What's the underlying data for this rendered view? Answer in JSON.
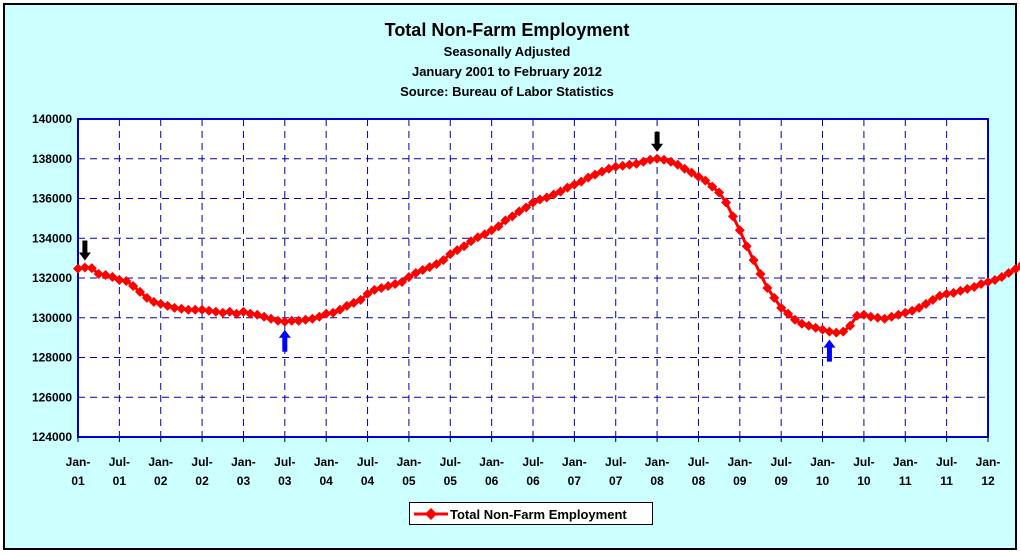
{
  "chart_data": {
    "type": "line",
    "title": "Total Non-Farm Employment",
    "subtitles": [
      "Seasonally Adjusted",
      "January 2001 to February 2012",
      "Source: Bureau of Labor Statistics"
    ],
    "xlabel": "",
    "ylabel": "",
    "ylim": [
      124000,
      140000
    ],
    "y_ticks": [
      "124000",
      "126000",
      "128000",
      "130000",
      "132000",
      "134000",
      "136000",
      "138000",
      "140000"
    ],
    "x_ticks": [
      {
        "top": "Jan-",
        "bottom": "01"
      },
      {
        "top": "Jul-",
        "bottom": "01"
      },
      {
        "top": "Jan-",
        "bottom": "02"
      },
      {
        "top": "Jul-",
        "bottom": "02"
      },
      {
        "top": "Jan-",
        "bottom": "03"
      },
      {
        "top": "Jul-",
        "bottom": "03"
      },
      {
        "top": "Jan-",
        "bottom": "04"
      },
      {
        "top": "Jul-",
        "bottom": "04"
      },
      {
        "top": "Jan-",
        "bottom": "05"
      },
      {
        "top": "Jul-",
        "bottom": "05"
      },
      {
        "top": "Jan-",
        "bottom": "06"
      },
      {
        "top": "Jul-",
        "bottom": "06"
      },
      {
        "top": "Jan-",
        "bottom": "07"
      },
      {
        "top": "Jul-",
        "bottom": "07"
      },
      {
        "top": "Jan-",
        "bottom": "08"
      },
      {
        "top": "Jul-",
        "bottom": "08"
      },
      {
        "top": "Jan-",
        "bottom": "09"
      },
      {
        "top": "Jul-",
        "bottom": "09"
      },
      {
        "top": "Jan-",
        "bottom": "10"
      },
      {
        "top": "Jul-",
        "bottom": "10"
      },
      {
        "top": "Jan-",
        "bottom": "11"
      },
      {
        "top": "Jul-",
        "bottom": "11"
      },
      {
        "top": "Jan-",
        "bottom": "12"
      }
    ],
    "grid": true,
    "legend_position": "bottom",
    "x_start": "2001-01",
    "series": [
      {
        "name": "Total Non-Farm Employment",
        "color": "#ff0000",
        "marker": "diamond",
        "values": [
          132470,
          132530,
          132500,
          132200,
          132150,
          132050,
          131900,
          131850,
          131600,
          131300,
          131000,
          130800,
          130700,
          130600,
          130500,
          130450,
          130400,
          130400,
          130400,
          130350,
          130300,
          130250,
          130300,
          130200,
          130300,
          130200,
          130150,
          130050,
          129950,
          129850,
          129800,
          129850,
          129850,
          129900,
          129950,
          130050,
          130200,
          130250,
          130400,
          130600,
          130750,
          130900,
          131200,
          131400,
          131500,
          131600,
          131700,
          131800,
          132050,
          132250,
          132400,
          132550,
          132700,
          132900,
          133200,
          133400,
          133600,
          133850,
          134050,
          134200,
          134400,
          134600,
          134900,
          135100,
          135350,
          135550,
          135800,
          135950,
          136050,
          136200,
          136350,
          136550,
          136700,
          136850,
          137050,
          137200,
          137350,
          137500,
          137600,
          137650,
          137700,
          137750,
          137850,
          137950,
          138000,
          137950,
          137850,
          137700,
          137500,
          137300,
          137100,
          136900,
          136600,
          136300,
          135800,
          135100,
          134400,
          133600,
          132900,
          132200,
          131500,
          131000,
          130500,
          130200,
          129900,
          129700,
          129600,
          129500,
          129400,
          129300,
          129250,
          129300,
          129600,
          130100,
          130150,
          130050,
          130000,
          129950,
          130050,
          130150,
          130250,
          130350,
          130500,
          130700,
          130900,
          131100,
          131200,
          131250,
          131350,
          131450,
          131550,
          131700,
          131800,
          131900,
          132050,
          132250,
          132450,
          132700
        ]
      }
    ],
    "annotations": [
      {
        "type": "arrow-down",
        "color": "#000000",
        "month_index": 1
      },
      {
        "type": "arrow-up",
        "color": "#0000ff",
        "month_index": 30
      },
      {
        "type": "arrow-down",
        "color": "#000000",
        "month_index": 84
      },
      {
        "type": "arrow-up",
        "color": "#0000ff",
        "month_index": 109
      }
    ]
  },
  "legend": {
    "label": "Total Non-Farm Employment"
  }
}
